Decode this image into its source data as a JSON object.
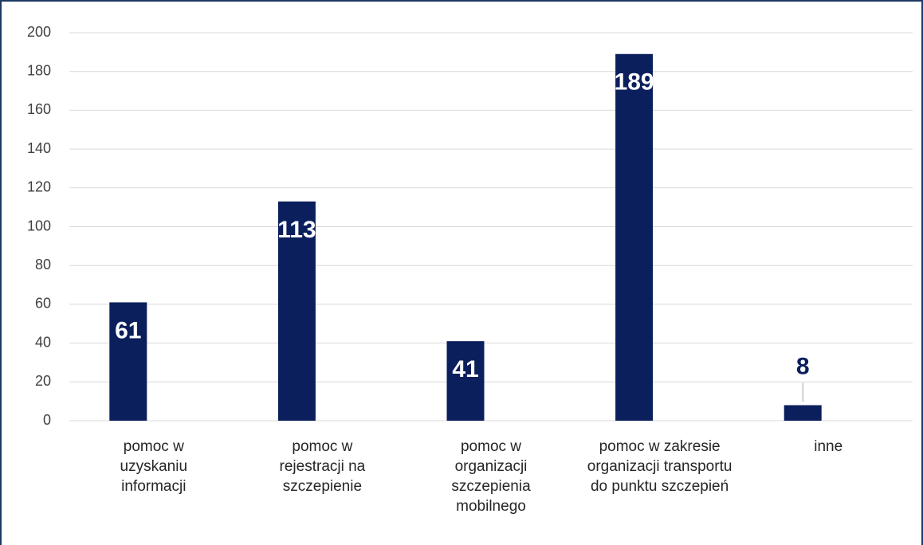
{
  "chart_data": {
    "type": "bar",
    "categories": [
      "pomoc w uzyskaniu informacji",
      "pomoc w rejestracji na szczepienie",
      "pomoc w organizacji szczepienia mobilnego",
      "pomoc w zakresie organizacji transportu do punktu szczepień",
      "inne"
    ],
    "values": [
      61,
      113,
      41,
      189,
      8
    ],
    "color": "#0b1f5c",
    "ylim": [
      0,
      200
    ],
    "yticks": [
      0,
      20,
      40,
      60,
      80,
      100,
      120,
      140,
      160,
      180,
      200
    ],
    "grid": true
  }
}
